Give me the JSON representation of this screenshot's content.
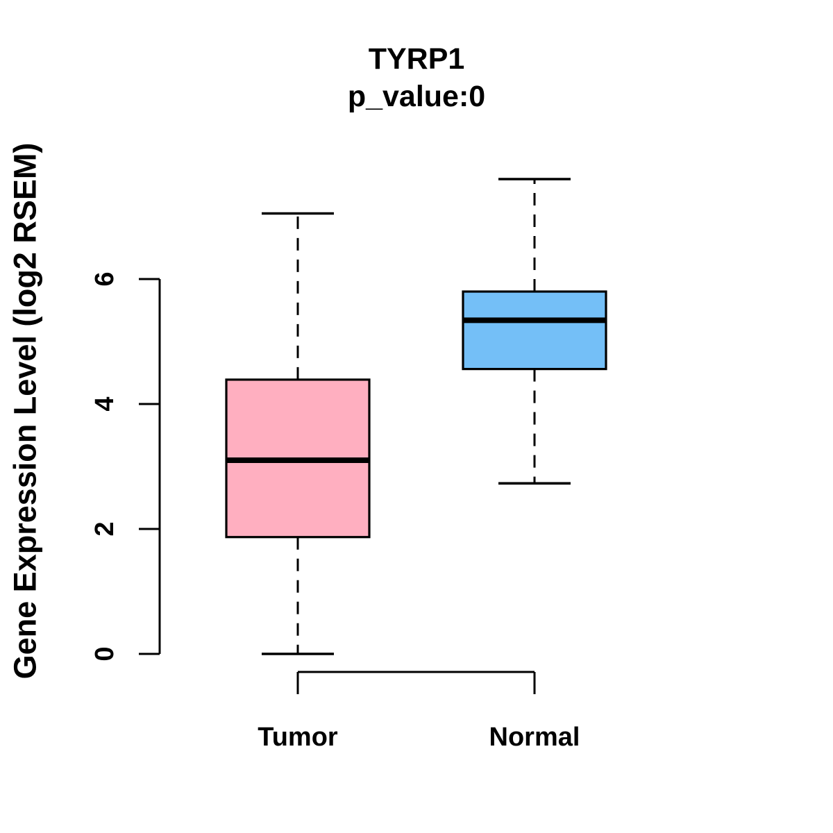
{
  "colors": {
    "background": "#FFFFFF",
    "line": "#000000",
    "tumor_fill": "#FFAFC0",
    "normal_fill": "#74BFF7"
  },
  "chart_data": {
    "type": "boxplot",
    "title": "TYRP1",
    "subtitle": "p_value:0",
    "xlabel": "",
    "ylabel": "Gene Expression Level (log2 RSEM)",
    "categories": [
      "Tumor",
      "Normal"
    ],
    "yticks": [
      0,
      2,
      4,
      6
    ],
    "ylim": [
      -0.6,
      8.1
    ],
    "grid": false,
    "legend": "none",
    "series": [
      {
        "name": "Tumor",
        "fill": "#FFAFC0",
        "whisker_low": 0.0,
        "q1": 1.87,
        "median": 3.1,
        "q3": 4.39,
        "whisker_high": 7.05
      },
      {
        "name": "Normal",
        "fill": "#74BFF7",
        "whisker_low": 2.73,
        "q1": 4.56,
        "median": 5.34,
        "q3": 5.8,
        "whisker_high": 7.6
      }
    ]
  }
}
